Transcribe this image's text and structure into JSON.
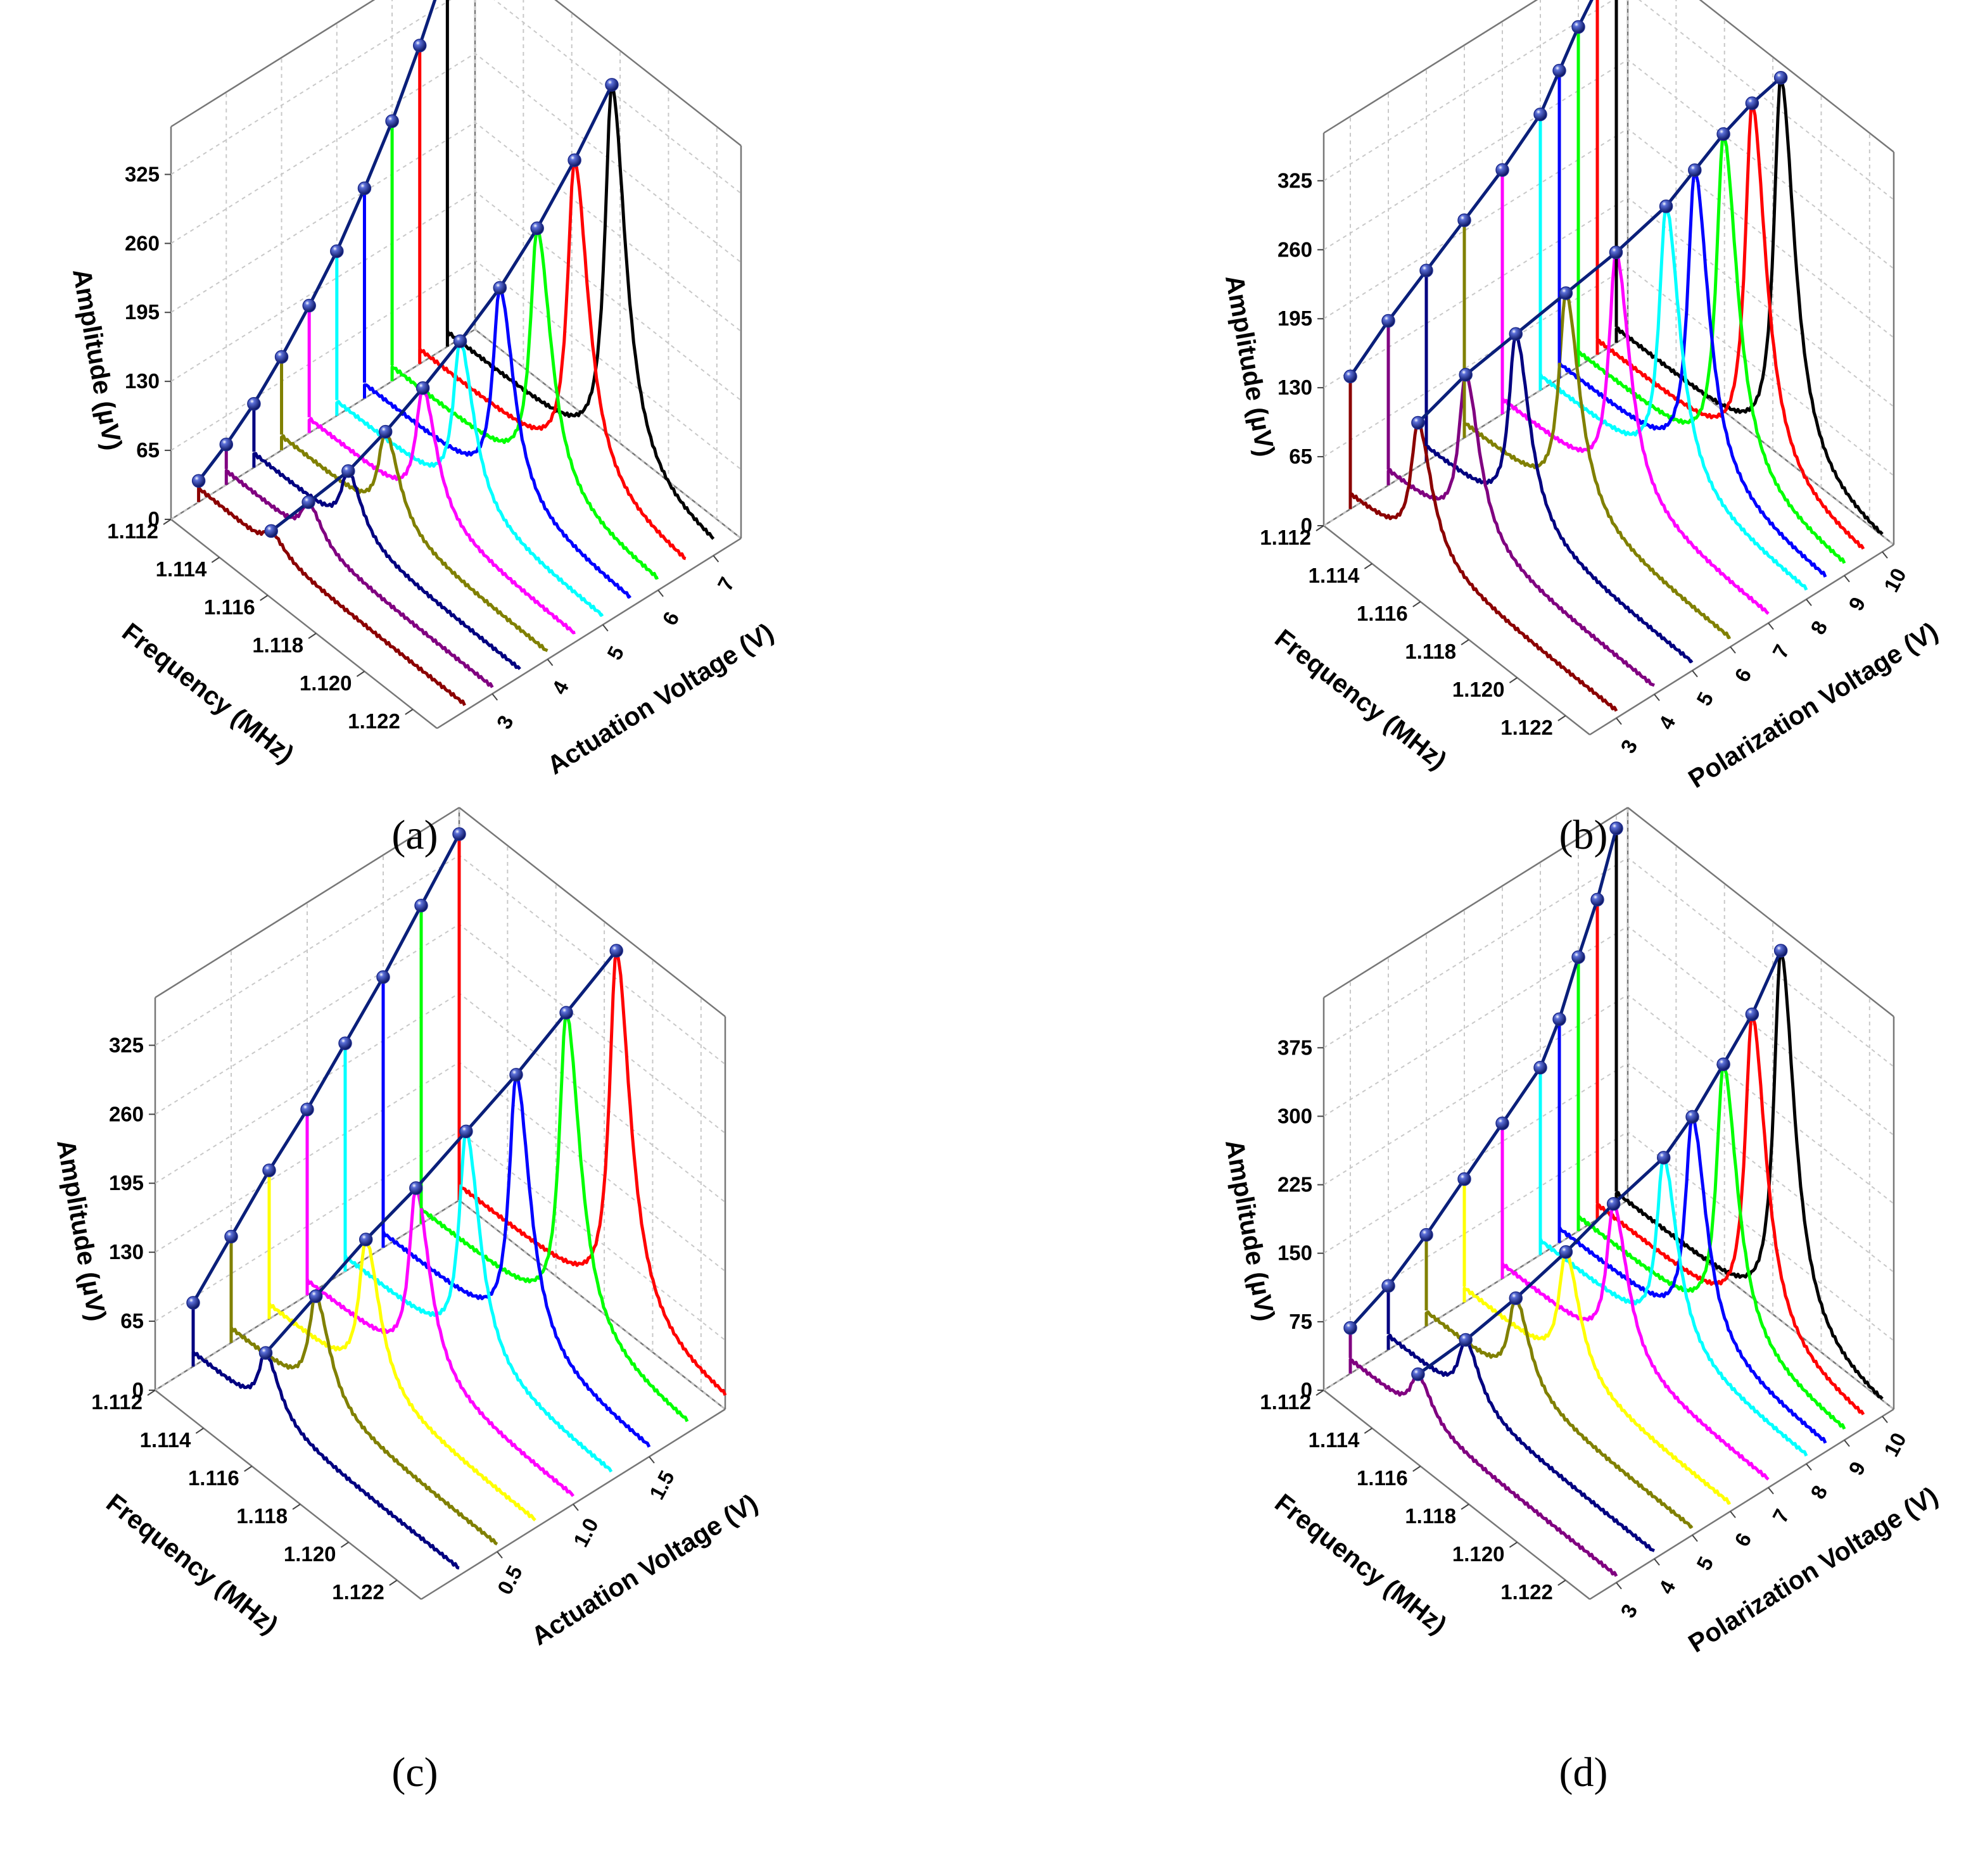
{
  "figure": {
    "panels": [
      {
        "id": "a",
        "caption": "(a)",
        "chart_data": {
          "type": "line",
          "title": "",
          "xlabel": "Frequency (MHz)",
          "ylabel": "Amplitude (µV)",
          "zlabel": "Actuation Voltage (V)",
          "x_ticks": [
            "1.112",
            "1.114",
            "1.116",
            "1.118",
            "1.120",
            "1.122"
          ],
          "y_ticks": [
            "0",
            "65",
            "130",
            "195",
            "260",
            "325"
          ],
          "z_ticks": [
            "3",
            "4",
            "5",
            "6",
            "7"
          ],
          "x_range": [
            1.112,
            1.123
          ],
          "y_range": [
            0,
            370
          ],
          "z_range": [
            2,
            7.5
          ],
          "series": [
            {
              "name": "2.5 V",
              "z": 2.5,
              "color": "#8B0000",
              "peak_freq": 1.115,
              "peak_amp": 20
            },
            {
              "name": "3.0 V",
              "z": 3.0,
              "color": "#800080",
              "peak_freq": 1.1154,
              "peak_amp": 38
            },
            {
              "name": "3.5 V",
              "z": 3.5,
              "color": "#000080",
              "peak_freq": 1.1159,
              "peak_amp": 60
            },
            {
              "name": "4.0 V",
              "z": 4.0,
              "color": "#808000",
              "peak_freq": 1.1163,
              "peak_amp": 88
            },
            {
              "name": "4.5 V",
              "z": 4.5,
              "color": "#FF00FF",
              "peak_freq": 1.1167,
              "peak_amp": 120
            },
            {
              "name": "5.0 V",
              "z": 5.0,
              "color": "#00FFFF",
              "peak_freq": 1.1171,
              "peak_amp": 155
            },
            {
              "name": "5.5 V",
              "z": 5.5,
              "color": "#0000FF",
              "peak_freq": 1.1176,
              "peak_amp": 198
            },
            {
              "name": "6.0 V",
              "z": 6.0,
              "color": "#00FF00",
              "peak_freq": 1.118,
              "peak_amp": 245
            },
            {
              "name": "6.5 V",
              "z": 6.5,
              "color": "#FF0000",
              "peak_freq": 1.1184,
              "peak_amp": 300
            },
            {
              "name": "7.0 V",
              "z": 7.0,
              "color": "#000000",
              "peak_freq": 1.1188,
              "peak_amp": 362
            }
          ]
        }
      },
      {
        "id": "b",
        "caption": "(b)",
        "chart_data": {
          "type": "line",
          "title": "",
          "xlabel": "Frequency (MHz)",
          "ylabel": "Amplitude (µV)",
          "zlabel": "Polarization Voltage (V)",
          "x_ticks": [
            "1.112",
            "1.114",
            "1.116",
            "1.118",
            "1.120",
            "1.122"
          ],
          "y_ticks": [
            "0",
            "65",
            "130",
            "195",
            "260",
            "325"
          ],
          "z_ticks": [
            "3",
            "4",
            "5",
            "6",
            "7",
            "8",
            "9",
            "10"
          ],
          "x_range": [
            1.112,
            1.123
          ],
          "y_range": [
            0,
            370
          ],
          "z_range": [
            2.3,
            10.3
          ],
          "series": [
            {
              "name": "3 V",
              "z": 3,
              "color": "#8B0000",
              "peak_freq": 1.1148,
              "peak_amp": 125
            },
            {
              "name": "4 V",
              "z": 4,
              "color": "#800080",
              "peak_freq": 1.1152,
              "peak_amp": 155
            },
            {
              "name": "5 V",
              "z": 5,
              "color": "#000080",
              "peak_freq": 1.1157,
              "peak_amp": 180
            },
            {
              "name": "6 V",
              "z": 6,
              "color": "#808000",
              "peak_freq": 1.1162,
              "peak_amp": 205
            },
            {
              "name": "7 V",
              "z": 7,
              "color": "#FF00FF",
              "peak_freq": 1.1167,
              "peak_amp": 230
            },
            {
              "name": "8 V",
              "z": 8,
              "color": "#00FFFF",
              "peak_freq": 1.1172,
              "peak_amp": 260
            },
            {
              "name": "8.5 V",
              "z": 8.5,
              "color": "#0000FF",
              "peak_freq": 1.1176,
              "peak_amp": 290
            },
            {
              "name": "9 V",
              "z": 9,
              "color": "#00FF00",
              "peak_freq": 1.118,
              "peak_amp": 320
            },
            {
              "name": "9.5 V",
              "z": 9.5,
              "color": "#FF0000",
              "peak_freq": 1.1184,
              "peak_amp": 345
            },
            {
              "name": "10 V",
              "z": 10,
              "color": "#000000",
              "peak_freq": 1.1188,
              "peak_amp": 365
            }
          ]
        }
      },
      {
        "id": "c",
        "caption": "(c)",
        "chart_data": {
          "type": "line",
          "title": "",
          "xlabel": "Frequency (MHz)",
          "ylabel": "Amplitude (µV)",
          "zlabel": "Actuation Voltage (V)",
          "x_ticks": [
            "1.112",
            "1.114",
            "1.116",
            "1.118",
            "1.120",
            "1.122"
          ],
          "y_ticks": [
            "0",
            "65",
            "130",
            "195",
            "260",
            "325"
          ],
          "z_ticks": [
            "0.5",
            "1.0",
            "1.5"
          ],
          "x_range": [
            1.112,
            1.123
          ],
          "y_range": [
            0,
            370
          ],
          "z_range": [
            0.0,
            2.0
          ],
          "series": [
            {
              "name": "0.25 V",
              "z": 0.25,
              "color": "#000080",
              "peak_freq": 1.115,
              "peak_amp": 60
            },
            {
              "name": "0.50 V",
              "z": 0.5,
              "color": "#808000",
              "peak_freq": 1.1155,
              "peak_amp": 100
            },
            {
              "name": "0.75 V",
              "z": 0.75,
              "color": "#FFFF00",
              "peak_freq": 1.116,
              "peak_amp": 140
            },
            {
              "name": "1.00 V",
              "z": 1.0,
              "color": "#FF00FF",
              "peak_freq": 1.1165,
              "peak_amp": 175
            },
            {
              "name": "1.25 V",
              "z": 1.25,
              "color": "#00FFFF",
              "peak_freq": 1.117,
              "peak_amp": 215
            },
            {
              "name": "1.50 V",
              "z": 1.5,
              "color": "#0000FF",
              "peak_freq": 1.1175,
              "peak_amp": 255
            },
            {
              "name": "1.75 V",
              "z": 1.75,
              "color": "#00FF00",
              "peak_freq": 1.118,
              "peak_amp": 300
            },
            {
              "name": "2.00 V",
              "z": 2.0,
              "color": "#FF0000",
              "peak_freq": 1.1185,
              "peak_amp": 345
            }
          ]
        }
      },
      {
        "id": "d",
        "caption": "(d)",
        "chart_data": {
          "type": "line",
          "title": "",
          "xlabel": "Frequency (MHz)",
          "ylabel": "Amplitude (µV)",
          "zlabel": "Polarization Voltage (V)",
          "x_ticks": [
            "1.112",
            "1.114",
            "1.116",
            "1.118",
            "1.120",
            "1.122"
          ],
          "y_ticks": [
            "0",
            "75",
            "150",
            "225",
            "300",
            "375"
          ],
          "z_ticks": [
            "3",
            "4",
            "5",
            "6",
            "7",
            "8",
            "9",
            "10"
          ],
          "x_range": [
            1.112,
            1.123
          ],
          "y_range": [
            0,
            430
          ],
          "z_range": [
            2.3,
            10.3
          ],
          "series": [
            {
              "name": "3 V",
              "z": 3,
              "color": "#800080",
              "peak_freq": 1.1148,
              "peak_amp": 50
            },
            {
              "name": "4 V",
              "z": 4,
              "color": "#000080",
              "peak_freq": 1.1152,
              "peak_amp": 70
            },
            {
              "name": "5 V",
              "z": 5,
              "color": "#808000",
              "peak_freq": 1.1157,
              "peak_amp": 100
            },
            {
              "name": "6 V",
              "z": 6,
              "color": "#FFFF00",
              "peak_freq": 1.1162,
              "peak_amp": 135
            },
            {
              "name": "7 V",
              "z": 7,
              "color": "#FF00FF",
              "peak_freq": 1.1166,
              "peak_amp": 170
            },
            {
              "name": "8 V",
              "z": 8,
              "color": "#00FFFF",
              "peak_freq": 1.1171,
              "peak_amp": 205
            },
            {
              "name": "8.5 V",
              "z": 8.5,
              "color": "#0000FF",
              "peak_freq": 1.1175,
              "peak_amp": 245
            },
            {
              "name": "9 V",
              "z": 9,
              "color": "#00FF00",
              "peak_freq": 1.118,
              "peak_amp": 300
            },
            {
              "name": "9.5 V",
              "z": 9.5,
              "color": "#FF0000",
              "peak_freq": 1.1184,
              "peak_amp": 350
            },
            {
              "name": "10 V",
              "z": 10,
              "color": "#000000",
              "peak_freq": 1.1188,
              "peak_amp": 415
            }
          ]
        }
      }
    ],
    "colors": {
      "fit_line": "#0a1f7a",
      "marker": "#1c2a8c",
      "grid": "#c8c8c8"
    }
  }
}
